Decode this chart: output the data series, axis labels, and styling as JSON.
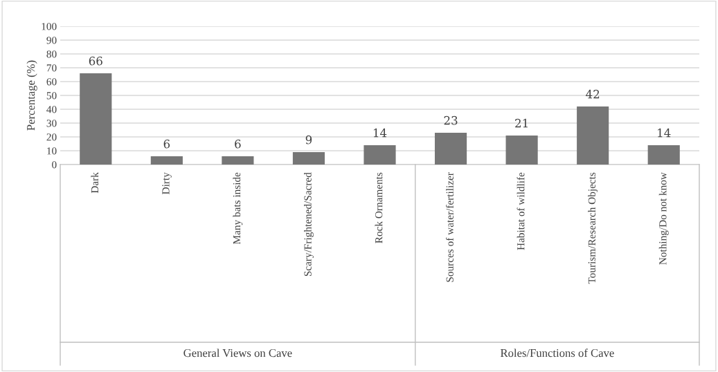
{
  "chart_data": {
    "type": "bar",
    "ylabel": "Percentage (%)",
    "categories": [
      "Dark",
      "Dirty",
      "Many bats inside",
      "Scary/Frightened/Sacred",
      "Rock Ornaments",
      "Sources of water/fertilizer",
      "Habitat of wildlife",
      "Tourism/Research Objects",
      "Nothing/Do not know"
    ],
    "values": [
      66,
      6,
      6,
      9,
      14,
      23,
      21,
      42,
      14
    ],
    "color": "#767676",
    "ylim": [
      0,
      100
    ],
    "yticks": [
      0,
      10,
      20,
      30,
      40,
      50,
      60,
      70,
      80,
      90,
      100
    ],
    "grid": "y",
    "data_labels": true,
    "annotations": [
      "General Views on Cave",
      "Roles/Functions of Cave"
    ]
  }
}
